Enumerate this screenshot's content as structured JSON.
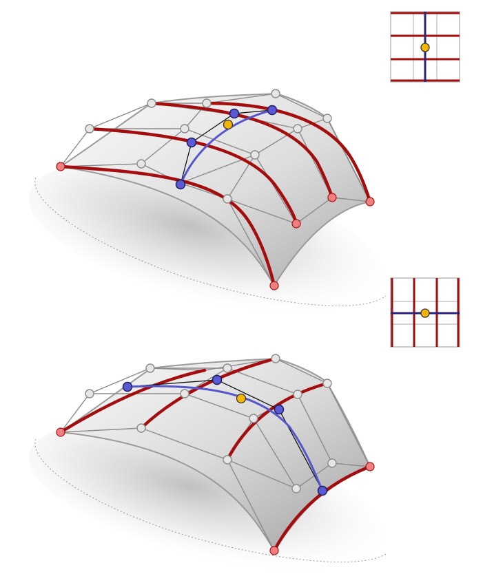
{
  "colors": {
    "background": "#ffffff",
    "surface_light": "#f4f4f4",
    "surface_mid": "#d6d6d6",
    "surface_dark": "#9a9a9a",
    "shadow": "#c9c9c9",
    "control_net": "#8c8c8c",
    "control_point_fill": "#e6e6e6",
    "control_point_stroke": "#8a8a8a",
    "iso_curve": "#a30d0d",
    "endpoint_fill": "#f08080",
    "active_curve": "#5555cc",
    "active_point_fill": "#5a5ad6",
    "active_point_stroke": "#1a1a5a",
    "eval_point_fill": "#f2b705",
    "eval_point_stroke": "#333333",
    "parameter_grid_line": "#bbbbbb",
    "parameter_active_line": "#2a2378"
  },
  "panels": [
    {
      "id": "top",
      "description_icon": "surface-icon",
      "parameter_inset": {
        "orientation": "vertical-active",
        "grid": 3
      }
    },
    {
      "id": "bottom",
      "description_icon": "surface-icon",
      "parameter_inset": {
        "orientation": "horizontal-active",
        "grid": 3
      }
    }
  ]
}
